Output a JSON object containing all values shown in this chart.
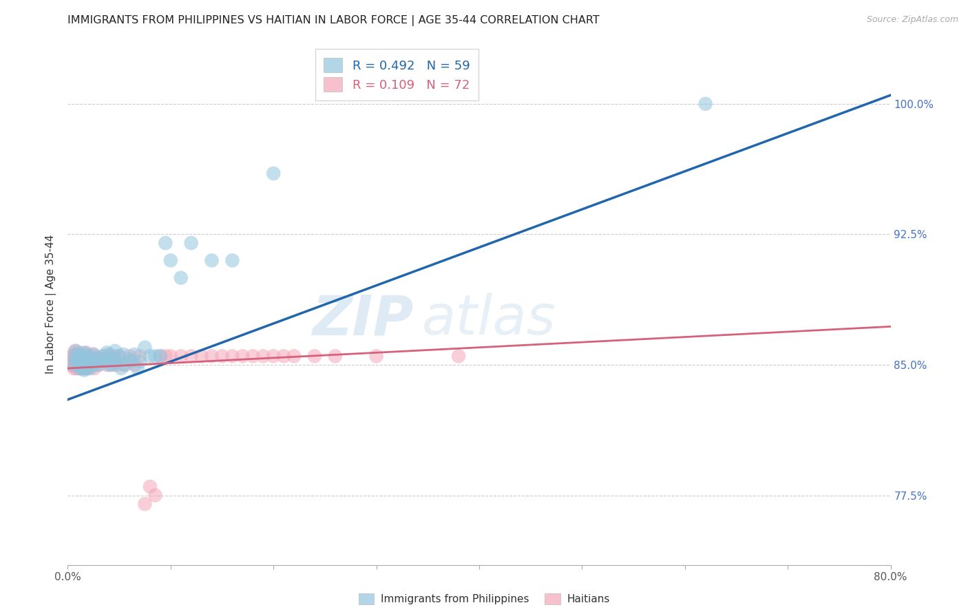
{
  "title": "IMMIGRANTS FROM PHILIPPINES VS HAITIAN IN LABOR FORCE | AGE 35-44 CORRELATION CHART",
  "source": "Source: ZipAtlas.com",
  "ylabel": "In Labor Force | Age 35-44",
  "xlim": [
    0.0,
    0.8
  ],
  "ylim": [
    0.735,
    1.035
  ],
  "xticks": [
    0.0,
    0.1,
    0.2,
    0.3,
    0.4,
    0.5,
    0.6,
    0.7,
    0.8
  ],
  "xticklabels": [
    "0.0%",
    "",
    "",
    "",
    "",
    "",
    "",
    "",
    "80.0%"
  ],
  "yticks": [
    0.775,
    0.85,
    0.925,
    1.0
  ],
  "yticklabels": [
    "77.5%",
    "85.0%",
    "92.5%",
    "100.0%"
  ],
  "legend_r_blue": "R = 0.492",
  "legend_n_blue": "N = 59",
  "legend_r_pink": "R = 0.109",
  "legend_n_pink": "N = 72",
  "blue_color": "#92c5de",
  "pink_color": "#f4a6b8",
  "blue_line_color": "#2166ac",
  "pink_line_color": "#d6617a",
  "watermark_text": "ZIP",
  "watermark_text2": "atlas",
  "blue_scatter_x": [
    0.005,
    0.007,
    0.008,
    0.008,
    0.01,
    0.01,
    0.01,
    0.012,
    0.012,
    0.012,
    0.014,
    0.014,
    0.015,
    0.015,
    0.016,
    0.016,
    0.016,
    0.018,
    0.018,
    0.02,
    0.02,
    0.022,
    0.022,
    0.024,
    0.025,
    0.026,
    0.028,
    0.03,
    0.032,
    0.034,
    0.036,
    0.038,
    0.04,
    0.04,
    0.042,
    0.044,
    0.046,
    0.048,
    0.05,
    0.052,
    0.054,
    0.056,
    0.06,
    0.062,
    0.065,
    0.068,
    0.07,
    0.075,
    0.08,
    0.085,
    0.09,
    0.095,
    0.1,
    0.11,
    0.12,
    0.14,
    0.16,
    0.2,
    0.62
  ],
  "blue_scatter_y": [
    0.85,
    0.855,
    0.852,
    0.858,
    0.85,
    0.853,
    0.856,
    0.848,
    0.852,
    0.855,
    0.848,
    0.852,
    0.85,
    0.854,
    0.847,
    0.852,
    0.857,
    0.848,
    0.856,
    0.85,
    0.853,
    0.848,
    0.854,
    0.852,
    0.856,
    0.85,
    0.854,
    0.85,
    0.853,
    0.855,
    0.852,
    0.857,
    0.85,
    0.856,
    0.853,
    0.85,
    0.858,
    0.852,
    0.855,
    0.848,
    0.856,
    0.85,
    0.853,
    0.852,
    0.856,
    0.848,
    0.852,
    0.86,
    0.855,
    0.855,
    0.855,
    0.92,
    0.91,
    0.9,
    0.92,
    0.91,
    0.91,
    0.96,
    1.0
  ],
  "pink_scatter_x": [
    0.003,
    0.004,
    0.005,
    0.006,
    0.006,
    0.007,
    0.007,
    0.008,
    0.008,
    0.009,
    0.009,
    0.01,
    0.01,
    0.01,
    0.011,
    0.011,
    0.012,
    0.012,
    0.013,
    0.013,
    0.014,
    0.014,
    0.015,
    0.015,
    0.016,
    0.016,
    0.017,
    0.018,
    0.018,
    0.019,
    0.02,
    0.02,
    0.022,
    0.024,
    0.025,
    0.026,
    0.028,
    0.03,
    0.032,
    0.035,
    0.038,
    0.04,
    0.042,
    0.045,
    0.048,
    0.05,
    0.055,
    0.06,
    0.065,
    0.07,
    0.075,
    0.08,
    0.085,
    0.09,
    0.095,
    0.1,
    0.11,
    0.12,
    0.13,
    0.14,
    0.15,
    0.16,
    0.17,
    0.18,
    0.19,
    0.2,
    0.21,
    0.22,
    0.24,
    0.26,
    0.3,
    0.38
  ],
  "pink_scatter_y": [
    0.85,
    0.855,
    0.852,
    0.848,
    0.856,
    0.852,
    0.858,
    0.848,
    0.854,
    0.85,
    0.856,
    0.848,
    0.852,
    0.857,
    0.85,
    0.854,
    0.848,
    0.853,
    0.85,
    0.856,
    0.848,
    0.852,
    0.848,
    0.855,
    0.85,
    0.854,
    0.848,
    0.852,
    0.857,
    0.85,
    0.853,
    0.848,
    0.855,
    0.85,
    0.856,
    0.848,
    0.854,
    0.85,
    0.853,
    0.855,
    0.85,
    0.855,
    0.85,
    0.855,
    0.85,
    0.855,
    0.85,
    0.855,
    0.85,
    0.855,
    0.77,
    0.78,
    0.775,
    0.855,
    0.855,
    0.855,
    0.855,
    0.855,
    0.855,
    0.855,
    0.855,
    0.855,
    0.855,
    0.855,
    0.855,
    0.855,
    0.855,
    0.855,
    0.855,
    0.855,
    0.855,
    0.855
  ],
  "blue_trend_x": [
    0.0,
    0.8
  ],
  "blue_trend_y": [
    0.83,
    1.005
  ],
  "pink_trend_x": [
    0.0,
    0.8
  ],
  "pink_trend_y": [
    0.848,
    0.872
  ],
  "background_color": "#ffffff",
  "grid_color": "#cccccc",
  "title_fontsize": 11.5,
  "axis_label_fontsize": 11,
  "tick_fontsize": 11,
  "source_fontsize": 9
}
